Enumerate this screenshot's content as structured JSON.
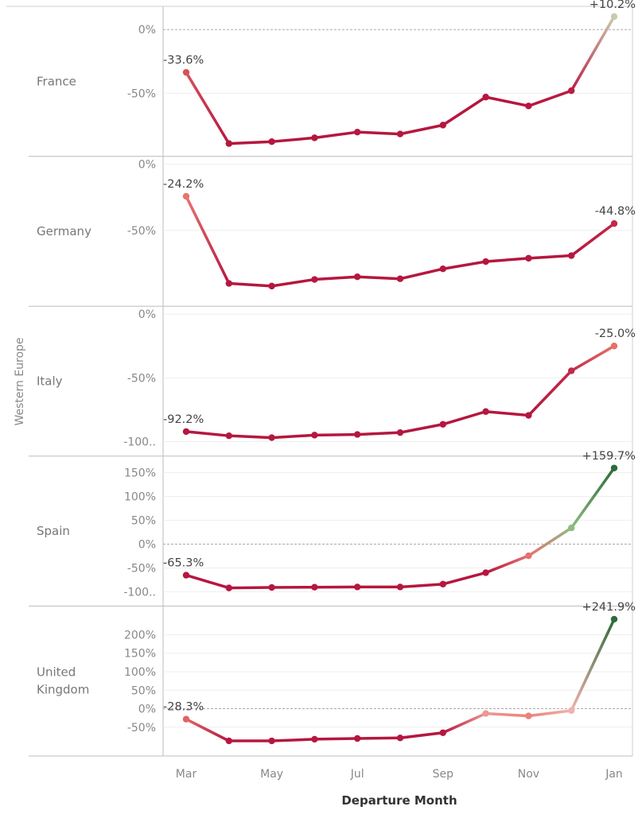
{
  "chart_data": {
    "type": "line",
    "region_label": "Western Europe",
    "xlabel": "Departure Month",
    "x_tick_labels": [
      "Mar",
      "May",
      "Jul",
      "Sep",
      "Nov",
      "Jan"
    ],
    "colors": {
      "negative": "#b5173f",
      "mid_negative": "#e8706a",
      "neutral": "#f2c4bc",
      "positive": "#2e6b3a"
    },
    "panels": [
      {
        "country": "France",
        "ylim": [
          -92,
          12
        ],
        "y_ticks": [
          0,
          -50
        ],
        "y_tick_labels": [
          "0%",
          "-50%"
        ],
        "zero_line": true,
        "values": [
          -33.6,
          -89.5,
          -88.0,
          -85.0,
          -80.5,
          -82.0,
          -75.0,
          -53.0,
          -60.0,
          -48.0,
          10.2
        ],
        "labels": [
          {
            "index": 0,
            "text": "-33.6%"
          },
          {
            "index": 10,
            "text": "+10.2%"
          }
        ]
      },
      {
        "country": "Germany",
        "ylim": [
          -100,
          0
        ],
        "y_ticks": [
          0,
          -50
        ],
        "y_tick_labels": [
          "0%",
          "-50%"
        ],
        "zero_line": false,
        "values": [
          -24.2,
          -90.0,
          -92.0,
          -87.0,
          -85.0,
          -86.5,
          -79.0,
          -73.5,
          -71.0,
          -69.0,
          -44.8
        ],
        "labels": [
          {
            "index": 0,
            "text": "-24.2%"
          },
          {
            "index": 10,
            "text": "-44.8%"
          }
        ]
      },
      {
        "country": "Italy",
        "ylim": [
          -104,
          0
        ],
        "y_ticks": [
          0,
          -50,
          -100
        ],
        "y_tick_labels": [
          "0%",
          "-50%",
          "-100.."
        ],
        "zero_line": false,
        "values": [
          -92.2,
          -95.5,
          -97.0,
          -95.0,
          -94.5,
          -93.0,
          -86.5,
          -76.5,
          -79.5,
          -44.5,
          -25.0
        ],
        "labels": [
          {
            "index": 0,
            "text": "-92.2%"
          },
          {
            "index": 10,
            "text": "-25.0%"
          }
        ]
      },
      {
        "country": "Spain",
        "ylim": [
          -110,
          168
        ],
        "y_ticks": [
          150,
          100,
          50,
          0,
          -50,
          -100
        ],
        "y_tick_labels": [
          "150%",
          "100%",
          "50%",
          "0%",
          "-50%",
          "-100.."
        ],
        "zero_line": true,
        "values": [
          -65.3,
          -92.0,
          -91.0,
          -90.5,
          -90.0,
          -90.0,
          -84.0,
          -60.0,
          -24.5,
          34.0,
          159.7
        ],
        "labels": [
          {
            "index": 0,
            "text": "-65.3%"
          },
          {
            "index": 10,
            "text": "+159.7%"
          }
        ]
      },
      {
        "country": "United Kingdom",
        "ylim": [
          -102,
          256
        ],
        "y_ticks": [
          200,
          150,
          100,
          50,
          0,
          -50
        ],
        "y_tick_labels": [
          "200%",
          "150%",
          "100%",
          "50%",
          "0%",
          "-50%"
        ],
        "zero_line": true,
        "values": [
          -28.3,
          -87.0,
          -87.0,
          -82.5,
          -80.5,
          -79.0,
          -65.0,
          -13.0,
          -19.5,
          -5.0,
          241.9
        ],
        "labels": [
          {
            "index": 0,
            "text": "-28.3%"
          },
          {
            "index": 10,
            "text": "+241.9%"
          }
        ]
      }
    ]
  }
}
